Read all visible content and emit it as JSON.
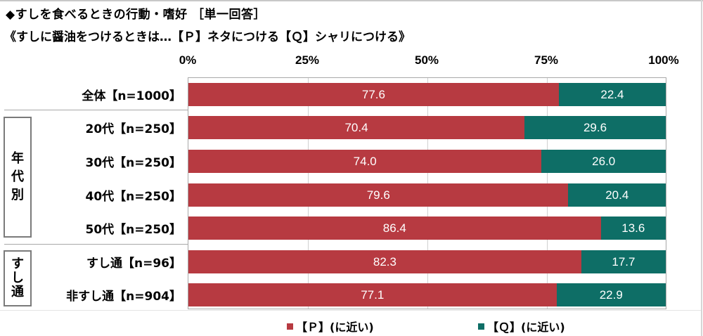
{
  "chart_data": {
    "type": "bar",
    "orientation": "horizontal",
    "stacked": true,
    "percent_stacked": true,
    "title": "◆すしを食べるときの行動・嗜好 ［単一回答］",
    "subtitle": "《すしに醤油をつけるときは…【Ｐ】ネタにつける【Ｑ】シャリにつける》",
    "xlabel": "",
    "ylabel": "",
    "xlim": [
      0,
      100
    ],
    "x_ticks": [
      "0%",
      "25%",
      "50%",
      "75%",
      "100%"
    ],
    "grid": true,
    "legend_position": "bottom",
    "categories": [
      "全体【n=1000】",
      "20代【n=250】",
      "30代【n=250】",
      "40代【n=250】",
      "50代【n=250】",
      "すし通【n=96】",
      "非すし通【n=904】"
    ],
    "groups": [
      {
        "label": "年代別",
        "categories": [
          "20代【n=250】",
          "30代【n=250】",
          "40代【n=250】",
          "50代【n=250】"
        ]
      },
      {
        "label": "すし通",
        "categories": [
          "すし通【n=96】",
          "非すし通【n=904】"
        ]
      }
    ],
    "series": [
      {
        "name": "【Ｐ】(に近い)",
        "color": "#b73a41",
        "values": [
          77.6,
          70.4,
          74.0,
          79.6,
          86.4,
          82.3,
          77.1
        ]
      },
      {
        "name": "【Ｑ】(に近い)",
        "color": "#0e6e66",
        "values": [
          22.4,
          29.6,
          26.0,
          20.4,
          13.6,
          17.7,
          22.9
        ]
      }
    ]
  },
  "header": {
    "title": "◆すしを食べるときの行動・嗜好 ［単一回答］",
    "subtitle": "《すしに醤油をつけるときは…【Ｐ】ネタにつける【Ｑ】シャリにつける》"
  },
  "axis": {
    "ticks": [
      "0%",
      "25%",
      "50%",
      "75%",
      "100%"
    ]
  },
  "groups": {
    "age": [
      "年",
      "代",
      "別"
    ],
    "sushi": [
      "す",
      "し",
      "通"
    ]
  },
  "rows": [
    {
      "label": "全体【n=1000】",
      "p": "77.6",
      "q": "22.4",
      "pv": 77.6
    },
    {
      "label": "20代【n=250】",
      "p": "70.4",
      "q": "29.6",
      "pv": 70.4
    },
    {
      "label": "30代【n=250】",
      "p": "74.0",
      "q": "26.0",
      "pv": 74.0
    },
    {
      "label": "40代【n=250】",
      "p": "79.6",
      "q": "20.4",
      "pv": 79.6
    },
    {
      "label": "50代【n=250】",
      "p": "86.4",
      "q": "13.6",
      "pv": 86.4
    },
    {
      "label": "すし通【n=96】",
      "p": "82.3",
      "q": "17.7",
      "pv": 82.3
    },
    {
      "label": "非すし通【n=904】",
      "p": "77.1",
      "q": "22.9",
      "pv": 77.1
    }
  ],
  "legend": {
    "p_label": "【Ｐ】(に近い)",
    "q_label": "【Ｑ】(に近い)",
    "p_color": "#b73a41",
    "q_color": "#0e6e66"
  }
}
